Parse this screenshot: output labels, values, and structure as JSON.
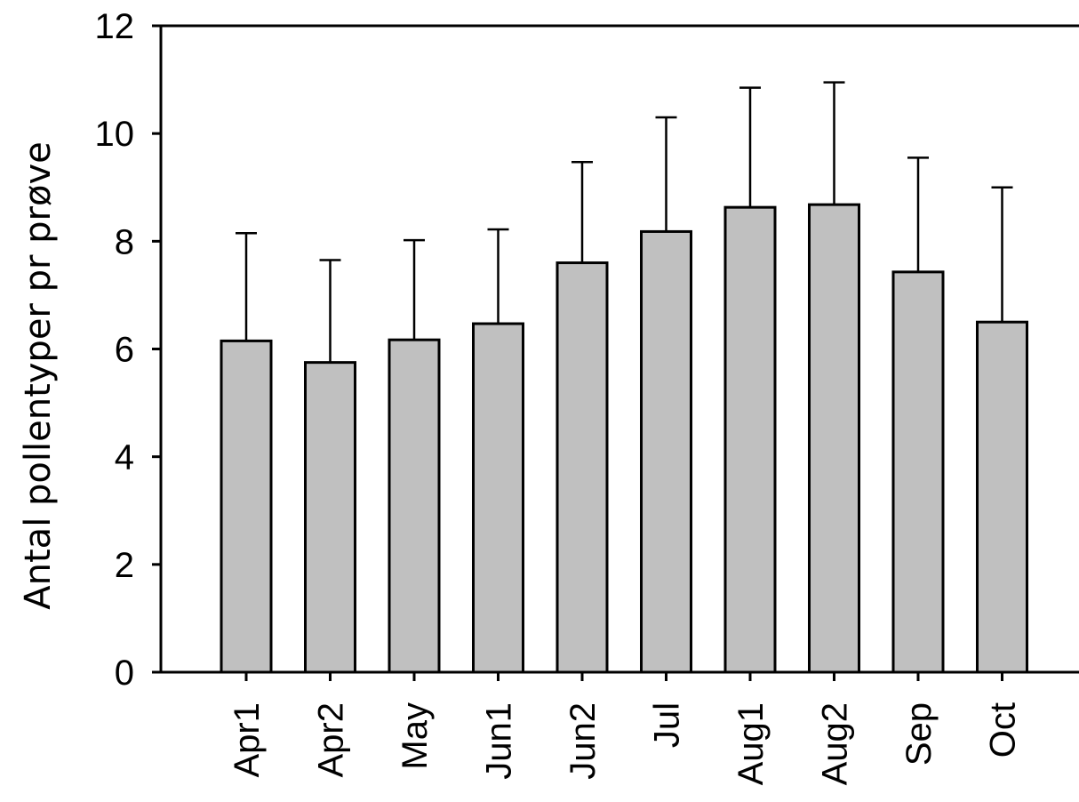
{
  "chart_data": {
    "type": "bar",
    "title": "",
    "xlabel": "",
    "ylabel": "Antal pollentyper pr prøve",
    "categories": [
      "Apr1",
      "Apr2",
      "May",
      "Jun1",
      "Jun2",
      "Jul",
      "Aug1",
      "Aug2",
      "Sep",
      "Oct"
    ],
    "values": [
      6.15,
      5.75,
      6.17,
      6.47,
      7.6,
      8.18,
      8.63,
      8.68,
      7.43,
      6.5
    ],
    "error_upper": [
      8.15,
      7.65,
      8.02,
      8.22,
      9.47,
      10.3,
      10.85,
      10.95,
      9.55,
      9.0
    ],
    "ylim": [
      0,
      12
    ],
    "yticks": [
      "0",
      "2",
      "4",
      "6",
      "8",
      "10",
      "12"
    ],
    "bar_color": "#c0c0c0",
    "grid": false,
    "legend": "none"
  }
}
